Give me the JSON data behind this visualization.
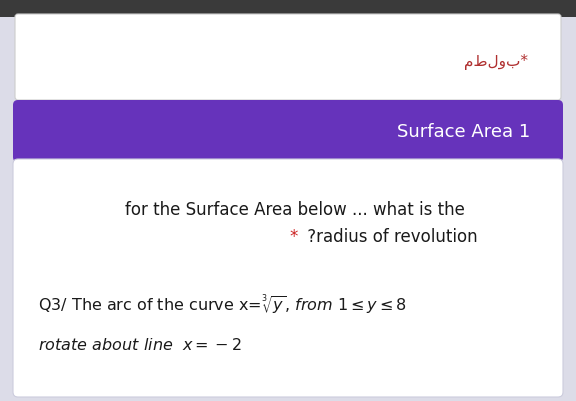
{
  "bg_color": "#dcdce8",
  "top_box_color": "#ffffff",
  "top_box_border": "#cccccc",
  "arabic_text": "مطلوب*",
  "arabic_color": "#b03030",
  "purple_box_color": "#6633bb",
  "purple_box_text": "Surface Area 1",
  "purple_text_color": "#ffffff",
  "body_bg": "#ffffff",
  "body_border": "#ccccdd",
  "line1": "for the Surface Area below ... what is the",
  "line2_star": "*",
  "line2_rest": " ?radius of revolution",
  "star_color": "#cc2222",
  "body_text_color": "#1a1a1a",
  "font_size_arabic": 11,
  "font_size_purple": 13,
  "font_size_body": 12,
  "font_size_q3": 11.5
}
